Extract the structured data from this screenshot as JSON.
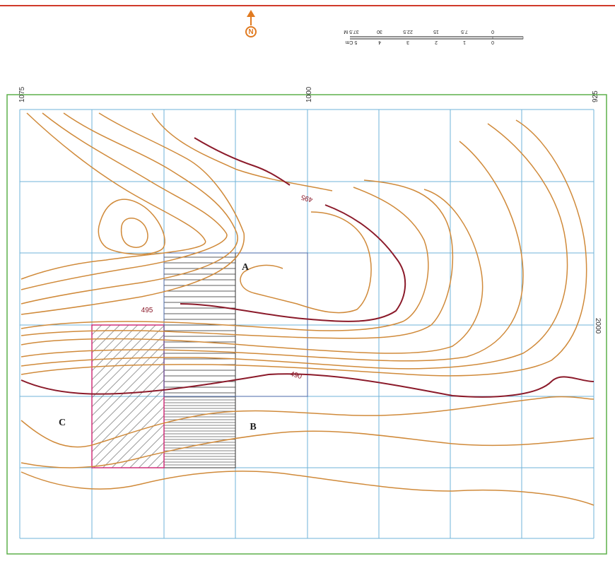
{
  "north": "N",
  "scale": {
    "meters": [
      "0",
      "7.5",
      "15",
      "22.5",
      "30",
      "37.5 M"
    ],
    "units": [
      "0",
      "1",
      "2",
      "3",
      "4",
      "5 Cm"
    ]
  },
  "grid_labels": {
    "x": [
      "1075",
      "1000",
      "925"
    ],
    "y": [
      "2000"
    ]
  },
  "contour_labels": [
    "495",
    "495",
    "490"
  ],
  "areas": [
    "A",
    "B",
    "C"
  ]
}
